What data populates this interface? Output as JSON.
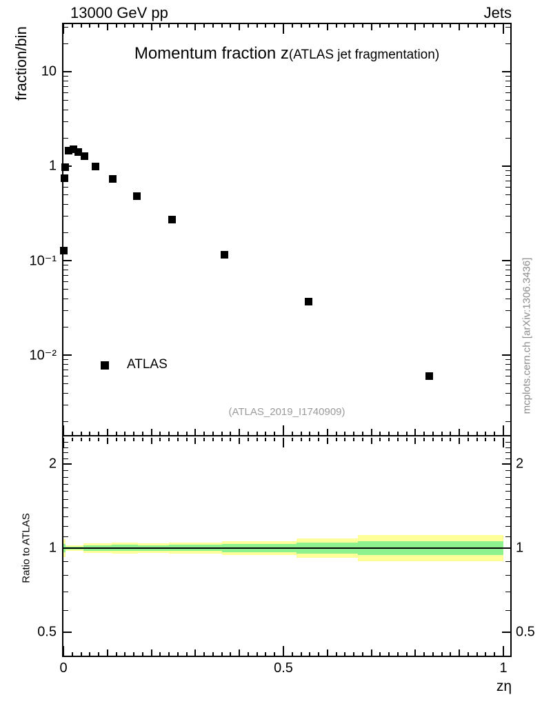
{
  "header": {
    "left_label": "13000 GeV pp",
    "right_label": "Jets"
  },
  "title": {
    "main": "Momentum fraction z",
    "sub": "(ATLAS jet fragmentation)"
  },
  "watermark": "(ATLAS_2019_I1740909)",
  "side_note": "mcplots.cern.ch [arXiv:1306.3436]",
  "legend": {
    "label": "ATLAS",
    "marker": "black-filled-square"
  },
  "main_panel": {
    "ylabel": "fraction/bin",
    "yticks": [
      {
        "value": 10,
        "label": "10"
      },
      {
        "value": 1,
        "label": "1"
      },
      {
        "value": 0.1,
        "label": "10⁻¹"
      },
      {
        "value": 0.01,
        "label": "10⁻²"
      }
    ]
  },
  "ratio_panel": {
    "ylabel": "Ratio to ATLAS",
    "yticks": [
      {
        "value": 2,
        "label": "2"
      },
      {
        "value": 1,
        "label": "1"
      },
      {
        "value": 0.5,
        "label": "0.5"
      }
    ]
  },
  "xaxis": {
    "label": "zη",
    "ticks": [
      {
        "value": 0,
        "label": "0"
      },
      {
        "value": 0.5,
        "label": "0.5"
      },
      {
        "value": 1,
        "label": "1"
      }
    ]
  },
  "colors": {
    "band_yellow": "#ffff99",
    "band_green": "#8df18d",
    "marker": "#000000",
    "gray_text": "#9a9a9a"
  },
  "chart_data": [
    {
      "type": "scatter",
      "title": "Momentum fraction z (ATLAS jet fragmentation)",
      "xlabel": "zη",
      "ylabel": "fraction/bin",
      "yscale": "log",
      "xlim": [
        0,
        1.02
      ],
      "ylim": [
        0.0015,
        33
      ],
      "legend_position": "left-middle",
      "series": [
        {
          "name": "ATLAS",
          "marker": "filled-square",
          "color": "#000000",
          "points": [
            [
              0.001,
              0.128
            ],
            [
              0.002,
              0.74
            ],
            [
              0.004,
              0.97
            ],
            [
              0.012,
              1.45
            ],
            [
              0.022,
              1.5
            ],
            [
              0.034,
              1.4
            ],
            [
              0.048,
              1.27
            ],
            [
              0.073,
              1.0
            ],
            [
              0.112,
              0.73
            ],
            [
              0.167,
              0.48
            ],
            [
              0.247,
              0.27
            ],
            [
              0.366,
              0.116
            ],
            [
              0.557,
              0.037
            ],
            [
              0.832,
              0.006
            ]
          ]
        }
      ]
    },
    {
      "type": "band",
      "ylabel": "Ratio to ATLAS",
      "yscale": "log",
      "xlim": [
        0,
        1.02
      ],
      "ylim": [
        0.41,
        2.5
      ],
      "reference_line": 1.0,
      "bands": [
        {
          "z0": 0.0,
          "z1": 0.005,
          "yellow": [
            0.929,
            1.077
          ],
          "green": [
            0.966,
            1.035
          ]
        },
        {
          "z0": 0.005,
          "z1": 0.045,
          "yellow": [
            0.978,
            1.023
          ],
          "green": [
            0.986,
            1.014
          ]
        },
        {
          "z0": 0.045,
          "z1": 0.11,
          "yellow": [
            0.961,
            1.041
          ],
          "green": [
            0.978,
            1.023
          ]
        },
        {
          "z0": 0.11,
          "z1": 0.17,
          "yellow": [
            0.956,
            1.047
          ],
          "green": [
            0.975,
            1.026
          ]
        },
        {
          "z0": 0.17,
          "z1": 0.24,
          "yellow": [
            0.961,
            1.041
          ],
          "green": [
            0.978,
            1.023
          ]
        },
        {
          "z0": 0.24,
          "z1": 0.36,
          "yellow": [
            0.956,
            1.047
          ],
          "green": [
            0.975,
            1.026
          ]
        },
        {
          "z0": 0.36,
          "z1": 0.53,
          "yellow": [
            0.945,
            1.058
          ],
          "green": [
            0.969,
            1.032
          ]
        },
        {
          "z0": 0.53,
          "z1": 0.67,
          "yellow": [
            0.924,
            1.083
          ],
          "green": [
            0.958,
            1.044
          ]
        },
        {
          "z0": 0.67,
          "z1": 1.0,
          "yellow": [
            0.898,
            1.114
          ],
          "green": [
            0.945,
            1.058
          ]
        }
      ]
    }
  ]
}
